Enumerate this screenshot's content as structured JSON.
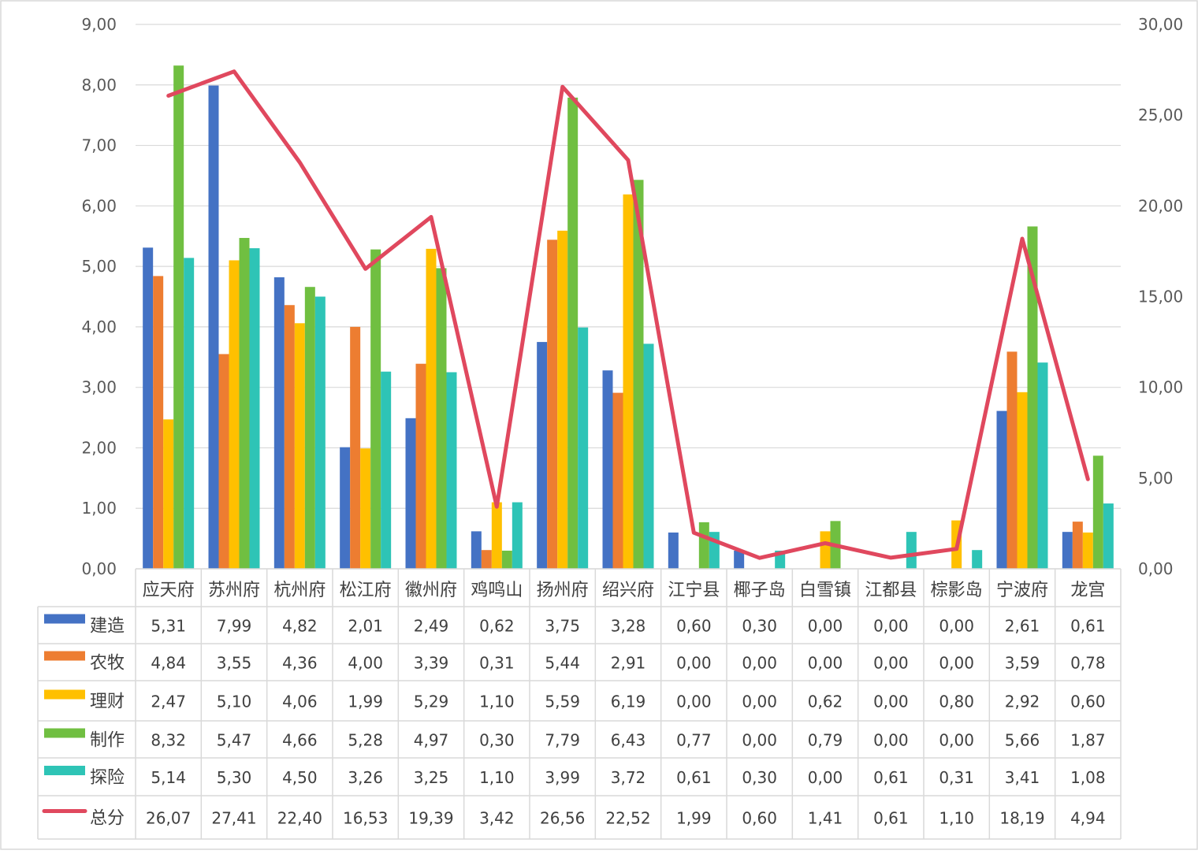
{
  "chart_data": {
    "type": "bar",
    "categories": [
      "应天府",
      "苏州府",
      "杭州府",
      "松江府",
      "徽州府",
      "鸡鸣山",
      "扬州府",
      "绍兴府",
      "江宁县",
      "椰子岛",
      "白雪镇",
      "江都县",
      "棕影岛",
      "宁波府",
      "龙宫"
    ],
    "series": [
      {
        "name": "建造",
        "type": "bar",
        "axis": "left",
        "color": "#4472C4",
        "values": [
          5.31,
          7.99,
          4.82,
          2.01,
          2.49,
          0.62,
          3.75,
          3.28,
          0.6,
          0.3,
          0.0,
          0.0,
          0.0,
          2.61,
          0.61
        ],
        "labels": [
          "5,31",
          "7,99",
          "4,82",
          "2,01",
          "2,49",
          "0,62",
          "3,75",
          "3,28",
          "0,60",
          "0,30",
          "0,00",
          "0,00",
          "0,00",
          "2,61",
          "0,61"
        ]
      },
      {
        "name": "农牧",
        "type": "bar",
        "axis": "left",
        "color": "#ED7D31",
        "values": [
          4.84,
          3.55,
          4.36,
          4.0,
          3.39,
          0.31,
          5.44,
          2.91,
          0.0,
          0.0,
          0.0,
          0.0,
          0.0,
          3.59,
          0.78
        ],
        "labels": [
          "4,84",
          "3,55",
          "4,36",
          "4,00",
          "3,39",
          "0,31",
          "5,44",
          "2,91",
          "0,00",
          "0,00",
          "0,00",
          "0,00",
          "0,00",
          "3,59",
          "0,78"
        ]
      },
      {
        "name": "理财",
        "type": "bar",
        "axis": "left",
        "color": "#FFC000",
        "values": [
          2.47,
          5.1,
          4.06,
          1.99,
          5.29,
          1.1,
          5.59,
          6.19,
          0.0,
          0.0,
          0.62,
          0.0,
          0.8,
          2.92,
          0.6
        ],
        "labels": [
          "2,47",
          "5,10",
          "4,06",
          "1,99",
          "5,29",
          "1,10",
          "5,59",
          "6,19",
          "0,00",
          "0,00",
          "0,62",
          "0,00",
          "0,80",
          "2,92",
          "0,60"
        ]
      },
      {
        "name": "制作",
        "type": "bar",
        "axis": "left",
        "color": "#70BF41",
        "values": [
          8.32,
          5.47,
          4.66,
          5.28,
          4.97,
          0.3,
          7.79,
          6.43,
          0.77,
          0.0,
          0.79,
          0.0,
          0.0,
          5.66,
          1.87
        ],
        "labels": [
          "8,32",
          "5,47",
          "4,66",
          "5,28",
          "4,97",
          "0,30",
          "7,79",
          "6,43",
          "0,77",
          "0,00",
          "0,79",
          "0,00",
          "0,00",
          "5,66",
          "1,87"
        ]
      },
      {
        "name": "探险",
        "type": "bar",
        "axis": "left",
        "color": "#2EC4B6",
        "values": [
          5.14,
          5.3,
          4.5,
          3.26,
          3.25,
          1.1,
          3.99,
          3.72,
          0.61,
          0.3,
          0.0,
          0.61,
          0.31,
          3.41,
          1.08
        ],
        "labels": [
          "5,14",
          "5,30",
          "4,50",
          "3,26",
          "3,25",
          "1,10",
          "3,99",
          "3,72",
          "0,61",
          "0,30",
          "0,00",
          "0,61",
          "0,31",
          "3,41",
          "1,08"
        ]
      },
      {
        "name": "总分",
        "type": "line",
        "axis": "right",
        "color": "#E0485E",
        "values": [
          26.07,
          27.41,
          22.4,
          16.53,
          19.39,
          3.42,
          26.56,
          22.52,
          1.99,
          0.6,
          1.41,
          0.61,
          1.1,
          18.19,
          4.94
        ],
        "labels": [
          "26,07",
          "27,41",
          "22,40",
          "16,53",
          "19,39",
          "3,42",
          "26,56",
          "22,52",
          "1,99",
          "0,60",
          "1,41",
          "0,61",
          "1,10",
          "18,19",
          "4,94"
        ]
      }
    ],
    "y_left": {
      "min": 0,
      "max": 9,
      "ticks": [
        "0,00",
        "1,00",
        "2,00",
        "3,00",
        "4,00",
        "5,00",
        "6,00",
        "7,00",
        "8,00",
        "9,00"
      ]
    },
    "y_right": {
      "min": 0,
      "max": 30,
      "ticks": [
        "0,00",
        "5,00",
        "10,00",
        "15,00",
        "20,00",
        "25,00",
        "30,00"
      ]
    },
    "grid": true,
    "legend": "data-table",
    "title": "",
    "xlabel": "",
    "ylabel": ""
  }
}
